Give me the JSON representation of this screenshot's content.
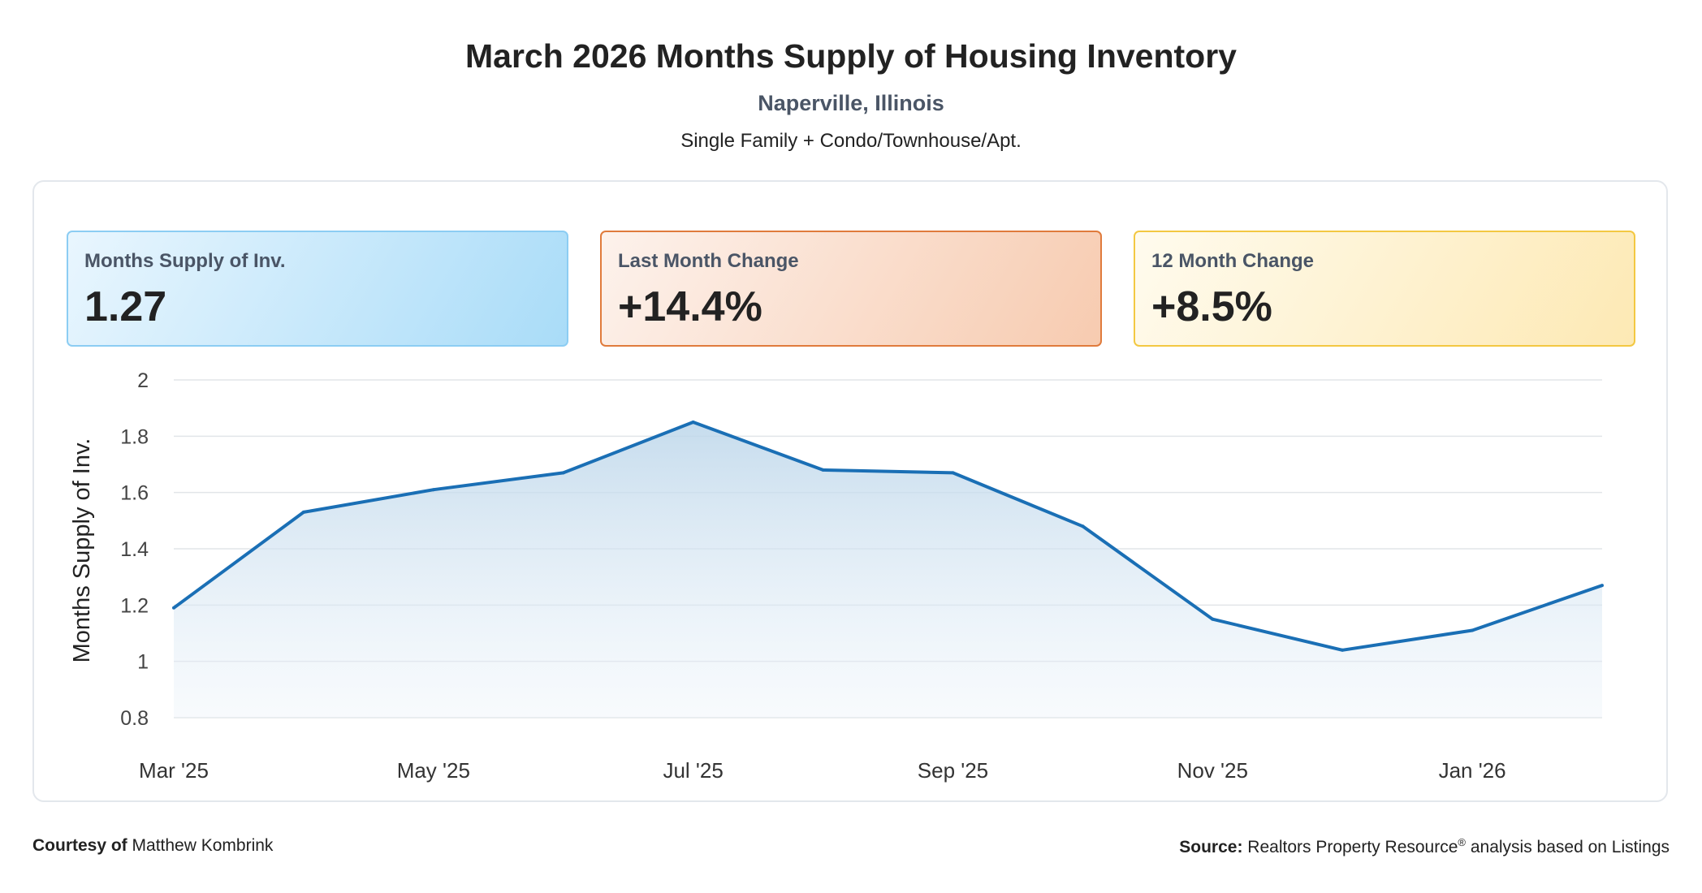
{
  "header": {
    "title": "March 2026 Months Supply of Housing Inventory",
    "location": "Naperville, Illinois",
    "segment": "Single Family + Condo/Townhouse/Apt."
  },
  "cards": [
    {
      "label": "Months Supply of Inv.",
      "value": "1.27"
    },
    {
      "label": "Last Month Change",
      "value": "+14.4%"
    },
    {
      "label": "12 Month Change",
      "value": "+8.5%"
    }
  ],
  "colors": {
    "line": "#1a6fb5",
    "grid": "#e2e5e9",
    "card_1_border": "#8ccdf3",
    "card_2_border": "#e07b3c",
    "card_3_border": "#f3c842"
  },
  "chart_data": {
    "type": "area",
    "x": [
      "Mar '25",
      "Apr '25",
      "May '25",
      "Jun '25",
      "Jul '25",
      "Aug '25",
      "Sep '25",
      "Oct '25",
      "Nov '25",
      "Dec '25",
      "Jan '26",
      "Feb '26"
    ],
    "x_tick_labels": [
      "Mar '25",
      "May '25",
      "Jul '25",
      "Sep '25",
      "Nov '25",
      "Jan '26"
    ],
    "series": [
      {
        "values": [
          1.19,
          1.53,
          1.61,
          1.67,
          1.85,
          1.68,
          1.67,
          1.48,
          1.15,
          1.04,
          1.11,
          1.27
        ]
      }
    ],
    "ylabel": "Months Supply of Inv.",
    "ylim": [
      0.8,
      2
    ],
    "y_ticks": [
      "0.8",
      "1",
      "1.2",
      "1.4",
      "1.6",
      "1.8",
      "2"
    ],
    "grid": true
  },
  "footer": {
    "courtesy_label": "Courtesy of",
    "courtesy_name": "Matthew Kombrink",
    "source_label": "Source:",
    "source_text": "Realtors Property Resource",
    "source_mark": "®",
    "source_suffix": "analysis based on Listings"
  }
}
